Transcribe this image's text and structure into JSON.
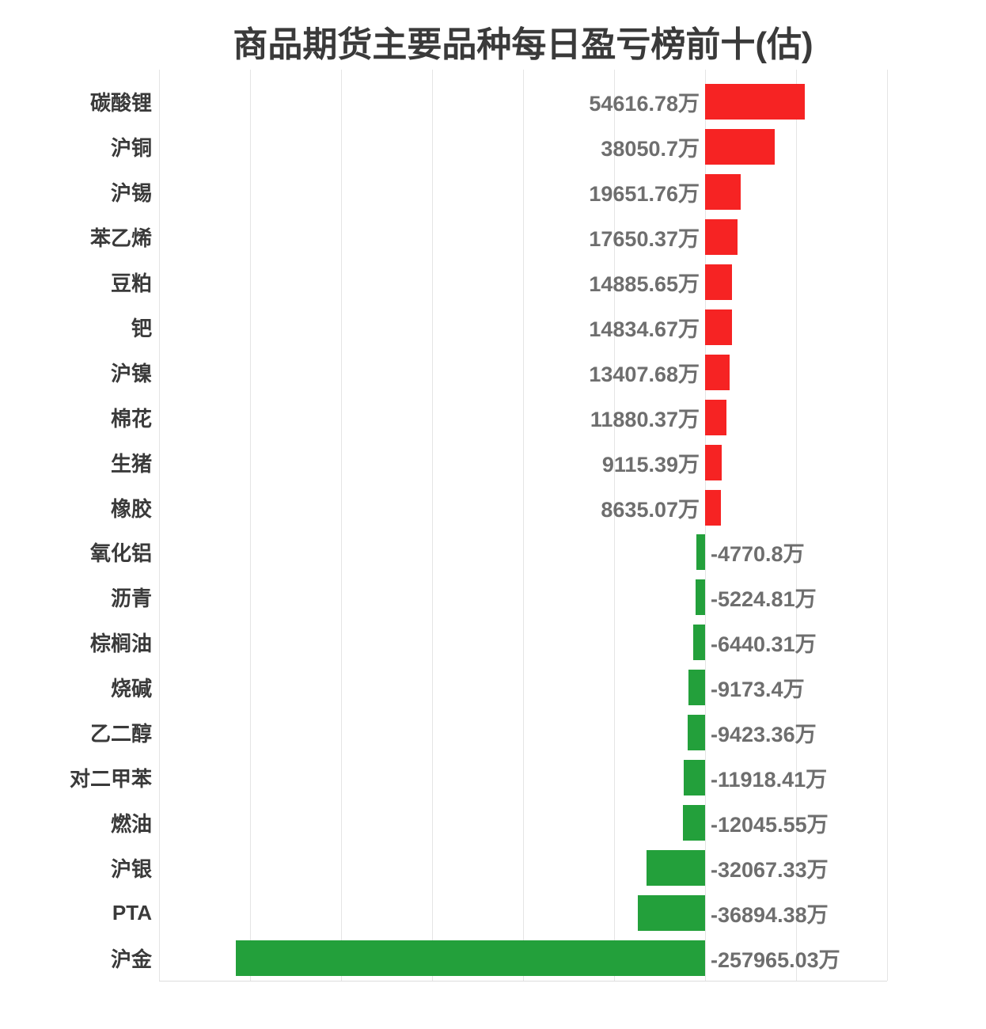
{
  "title": "商品期货主要品种每日盈亏榜前十(估)",
  "chart_data": {
    "type": "bar",
    "orientation": "horizontal",
    "title": "商品期货主要品种每日盈亏榜前十(估)",
    "unit": "万",
    "categories": [
      "碳酸锂",
      "沪铜",
      "沪锡",
      "苯乙烯",
      "豆粕",
      "钯",
      "沪镍",
      "棉花",
      "生猪",
      "橡胶",
      "氧化铝",
      "沥青",
      "棕榈油",
      "烧碱",
      "乙二醇",
      "对二甲苯",
      "燃油",
      "沪银",
      "PTA",
      "沪金"
    ],
    "values": [
      54616.78,
      38050.7,
      19651.76,
      17650.37,
      14885.65,
      14834.67,
      13407.68,
      11880.37,
      9115.39,
      8635.07,
      -4770.8,
      -5224.81,
      -6440.31,
      -9173.4,
      -9423.36,
      -11918.41,
      -12045.55,
      -32067.33,
      -36894.38,
      -257965.03
    ],
    "value_labels": [
      "54616.78万",
      "38050.7万",
      "19651.76万",
      "17650.37万",
      "14885.65万",
      "14834.67万",
      "13407.68万",
      "11880.37万",
      "9115.39万",
      "8635.07万",
      "-4770.8万",
      "-5224.81万",
      "-6440.31万",
      "-9173.4万",
      "-9423.36万",
      "-11918.41万",
      "-12045.55万",
      "-32067.33万",
      "-36894.38万",
      "-257965.03万"
    ],
    "xlim": [
      -300000,
      100000
    ],
    "grid_interval": 50000,
    "grid": true,
    "legend_position": "none",
    "colors": {
      "positive_bar": "#f62323",
      "negative_bar": "#23a03b",
      "value_label": "#6e6e6e",
      "category_label": "#3a3a3a",
      "title": "#3a3a3a",
      "gridline": "#e4e4e4",
      "axis_line": "#dcdcdc",
      "background": "#ffffff"
    }
  }
}
